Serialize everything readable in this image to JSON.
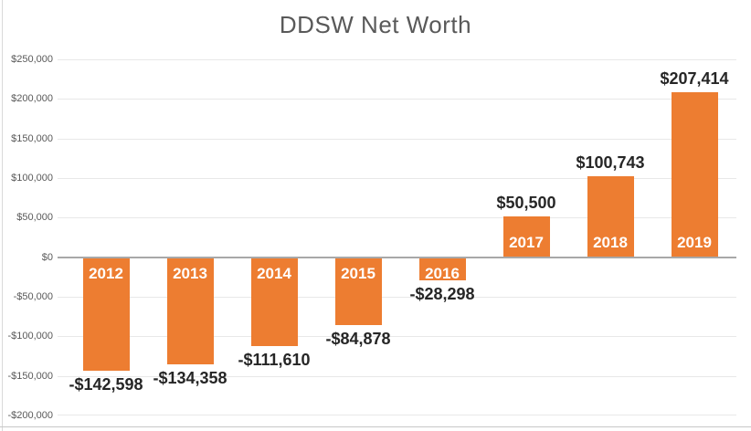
{
  "chart_title": "DDSW Net Worth",
  "colors": {
    "bar": "#ED7D31",
    "title_text": "#595959",
    "axis_text": "#595959",
    "value_label_text": "#262626",
    "year_label_text": "#FFFFFF",
    "gridline": "#E8E8E8",
    "zero_line": "#A8A8A8",
    "border_left": "#D9D9D9",
    "border_bottom": "#C8C8C8"
  },
  "chart_data": {
    "type": "bar",
    "title": "DDSW Net Worth",
    "categories": [
      "2012",
      "2013",
      "2014",
      "2015",
      "2016",
      "2017",
      "2018",
      "2019"
    ],
    "values": [
      -142598,
      -134358,
      -111610,
      -84878,
      -28298,
      50500,
      100743,
      207414
    ],
    "value_labels": [
      "-$142,598",
      "-$134,358",
      "-$111,610",
      "-$84,878",
      "-$28,298",
      "$50,500",
      "$100,743",
      "$207,414"
    ],
    "xlabel": "",
    "ylabel": "",
    "ylim": [
      -200000,
      250000
    ],
    "y_tick_step": 50000,
    "y_ticks": [
      250000,
      200000,
      150000,
      100000,
      50000,
      0,
      -50000,
      -100000,
      -150000,
      -200000
    ],
    "y_tick_labels": [
      "$250,000",
      "$200,000",
      "$150,000",
      "$100,000",
      "$50,000",
      "$0",
      "-$50,000",
      "-$100,000",
      "-$150,000",
      "-$200,000"
    ],
    "grid": true,
    "legend": "none",
    "bar_color": "#ED7D31",
    "category_label_position": "inside-base",
    "value_label_position": "outside-end"
  }
}
